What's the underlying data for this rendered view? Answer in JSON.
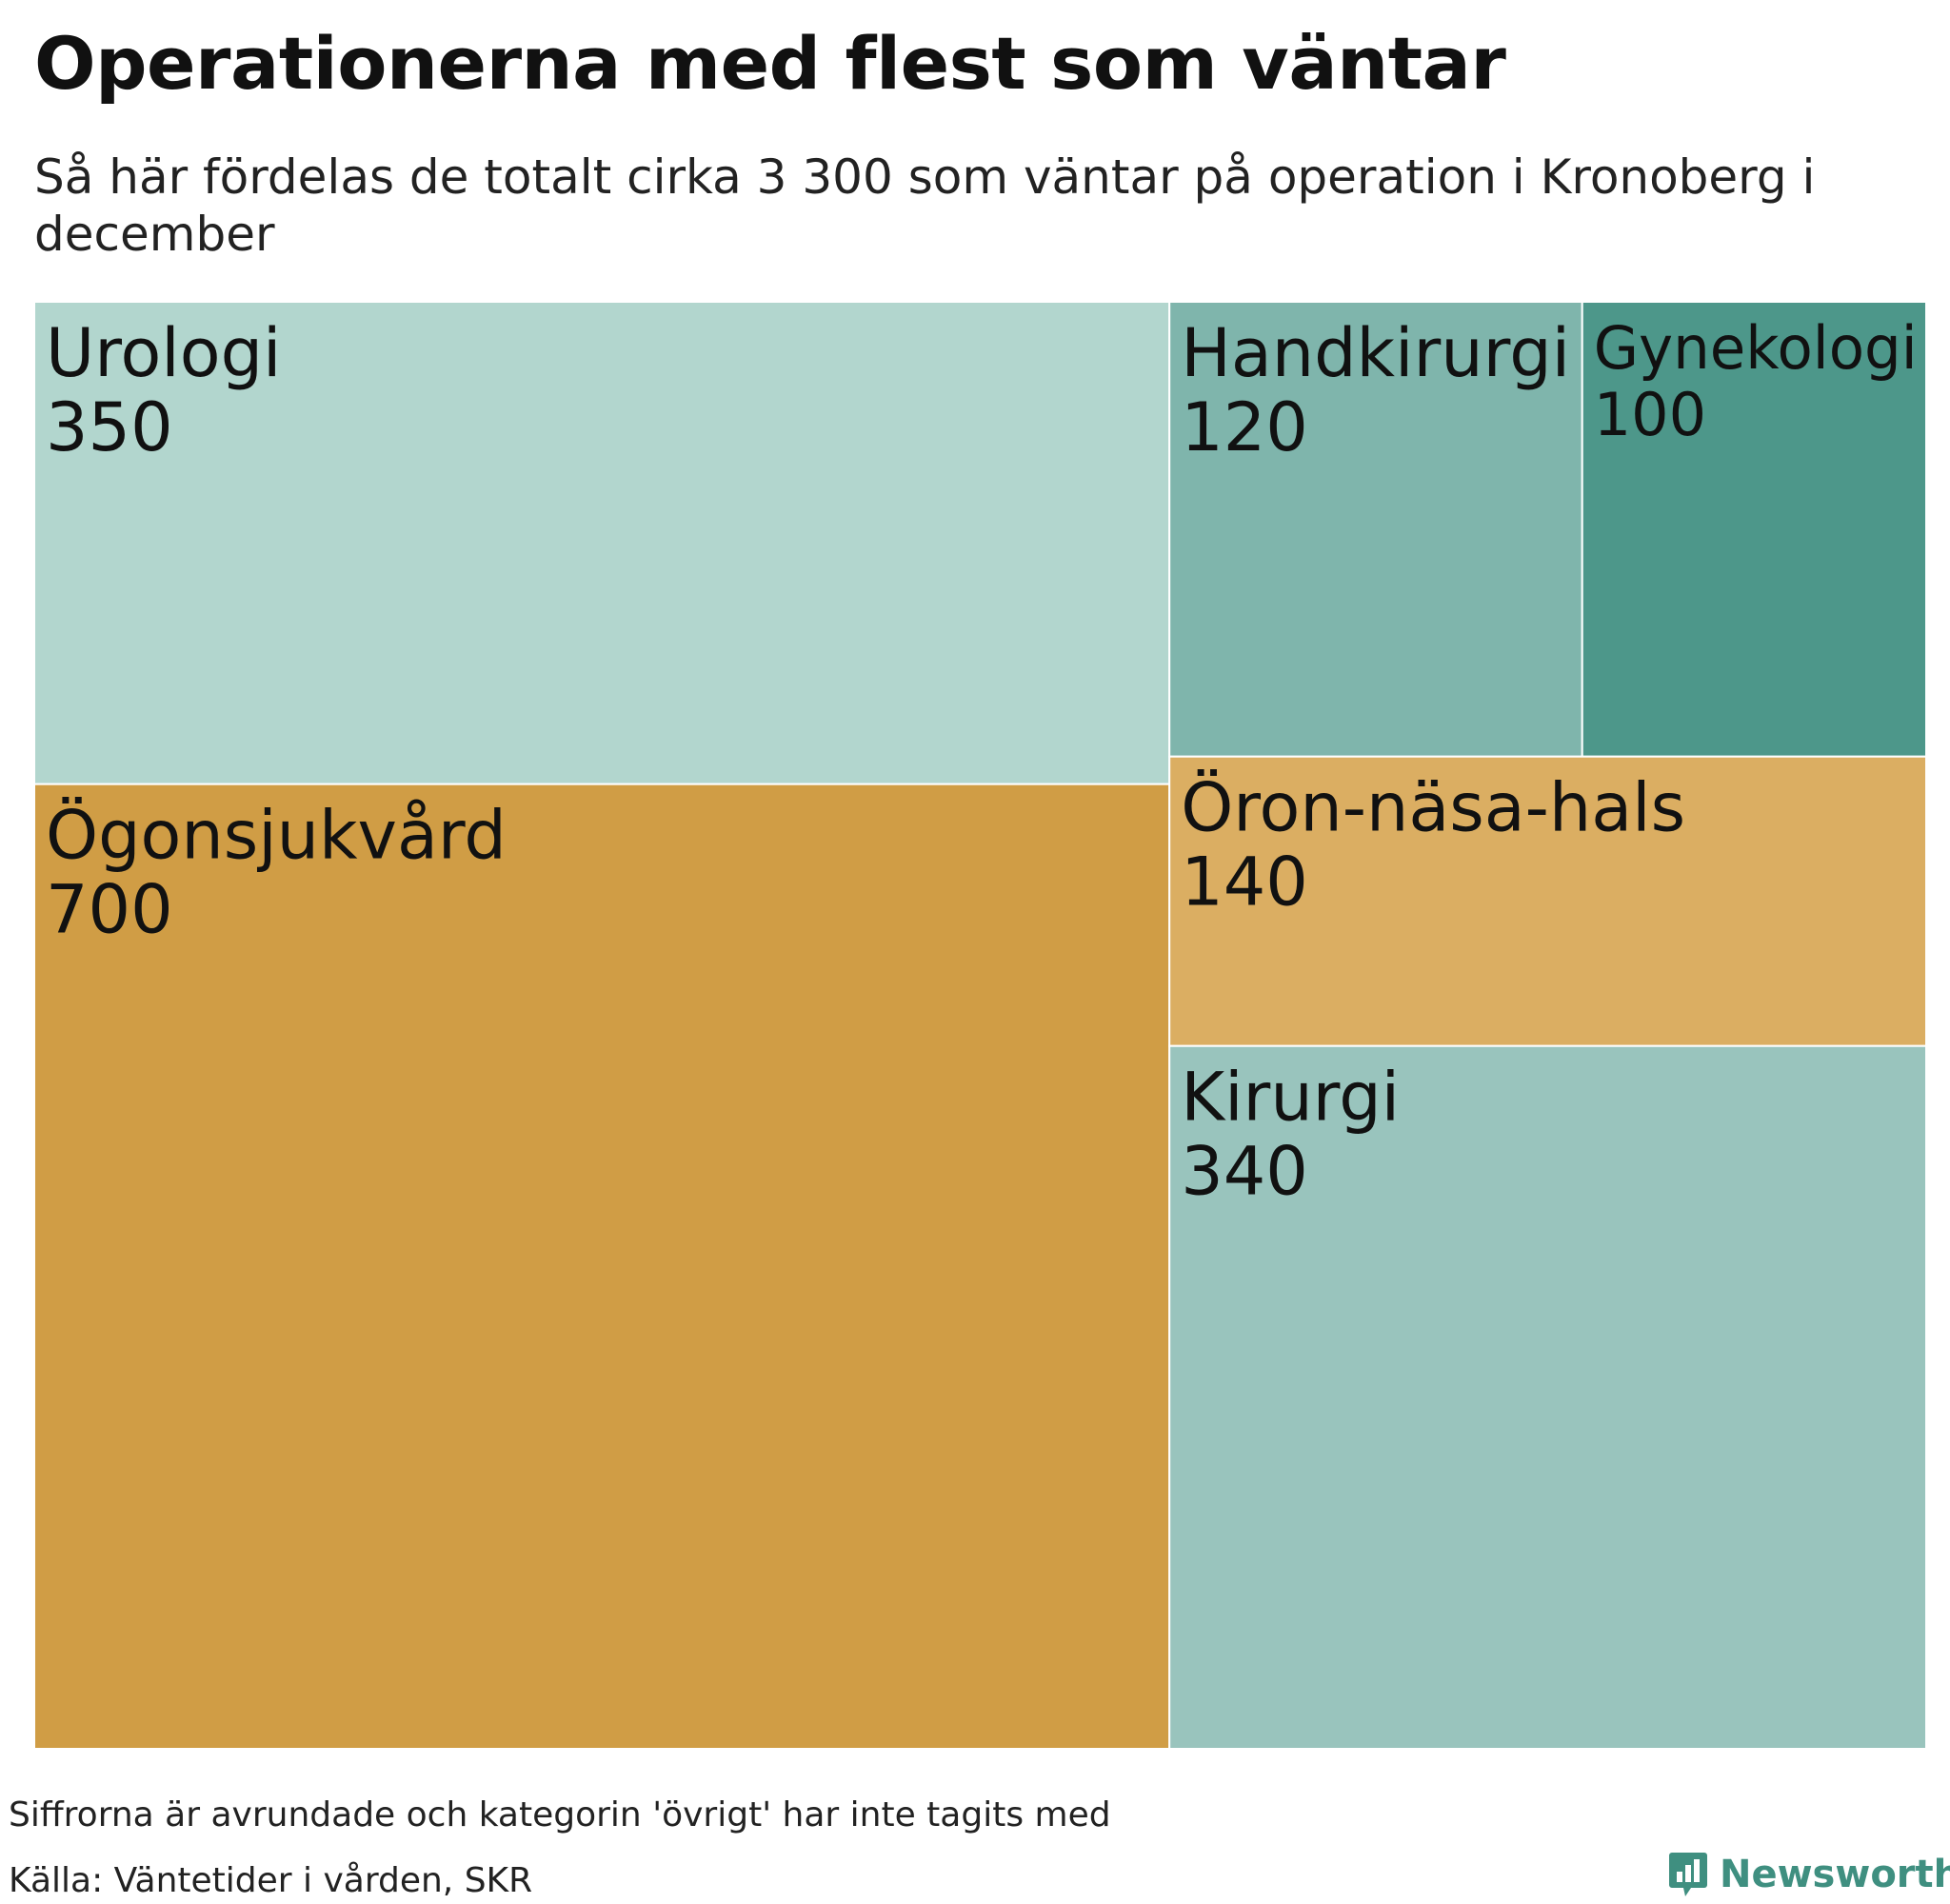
{
  "chart_data": {
    "type": "treemap",
    "title": "Operationerna med flest som väntar",
    "subtitle": "Så här fördelas de totalt cirka 3 300 som väntar på operation i Kronoberg i december",
    "items": [
      {
        "name": "Urologi",
        "value": 350,
        "color": "#b2d6ce"
      },
      {
        "name": "Ögonsjukvård",
        "value": 700,
        "color": "#d09d45"
      },
      {
        "name": "Handkirurgi",
        "value": 120,
        "color": "#7fb5ac"
      },
      {
        "name": "Gynekologi",
        "value": 100,
        "color": "#4d978a"
      },
      {
        "name": "Öron-näsa-hals",
        "value": 140,
        "color": "#dbae62"
      },
      {
        "name": "Kirurgi",
        "value": 340,
        "color": "#99c4bd"
      }
    ]
  },
  "footer": {
    "note": "Siffrorna är avrundade och kategorin 'övrigt' har inte tagits med",
    "source": "Källa: Väntetider i vården, SKR"
  },
  "brand": {
    "name": "Newsworthy",
    "icon": "newsworthy-logo-icon",
    "color": "#3f8f80"
  }
}
